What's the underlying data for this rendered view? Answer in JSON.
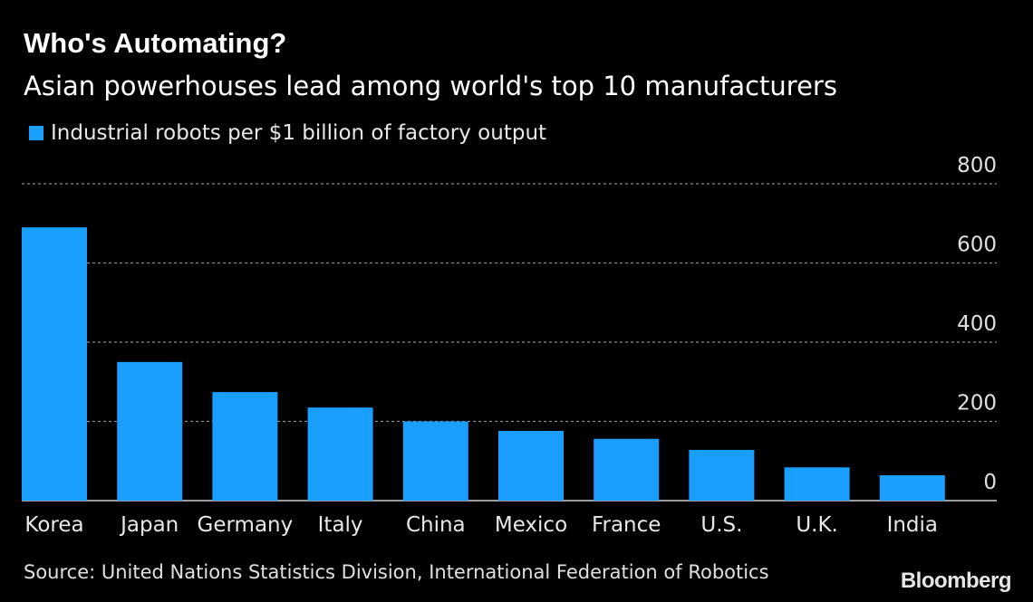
{
  "title": "Who's Automating?",
  "subtitle": "Asian powerhouses lead among world's top 10 manufacturers",
  "colors": {
    "bar": "#1a9fff",
    "grid": "#8a8a8a",
    "background": "#000000"
  },
  "chart_data": {
    "type": "bar",
    "categories": [
      "Korea",
      "Japan",
      "Germany",
      "Italy",
      "China",
      "Mexico",
      "France",
      "U.S.",
      "U.K.",
      "India"
    ],
    "series": [
      {
        "name": "Industrial robots per $1 billion of factory output",
        "values": [
          690,
          350,
          274,
          235,
          200,
          176,
          156,
          128,
          84,
          64
        ]
      }
    ],
    "yticks": [
      0,
      200,
      400,
      600,
      800
    ],
    "ylim": [
      0,
      800
    ],
    "grid": true,
    "legend": "top-left",
    "xlabel": "",
    "ylabel": ""
  },
  "source": "Source: United Nations Statistics Division, International Federation of Robotics",
  "brand": "Bloomberg"
}
